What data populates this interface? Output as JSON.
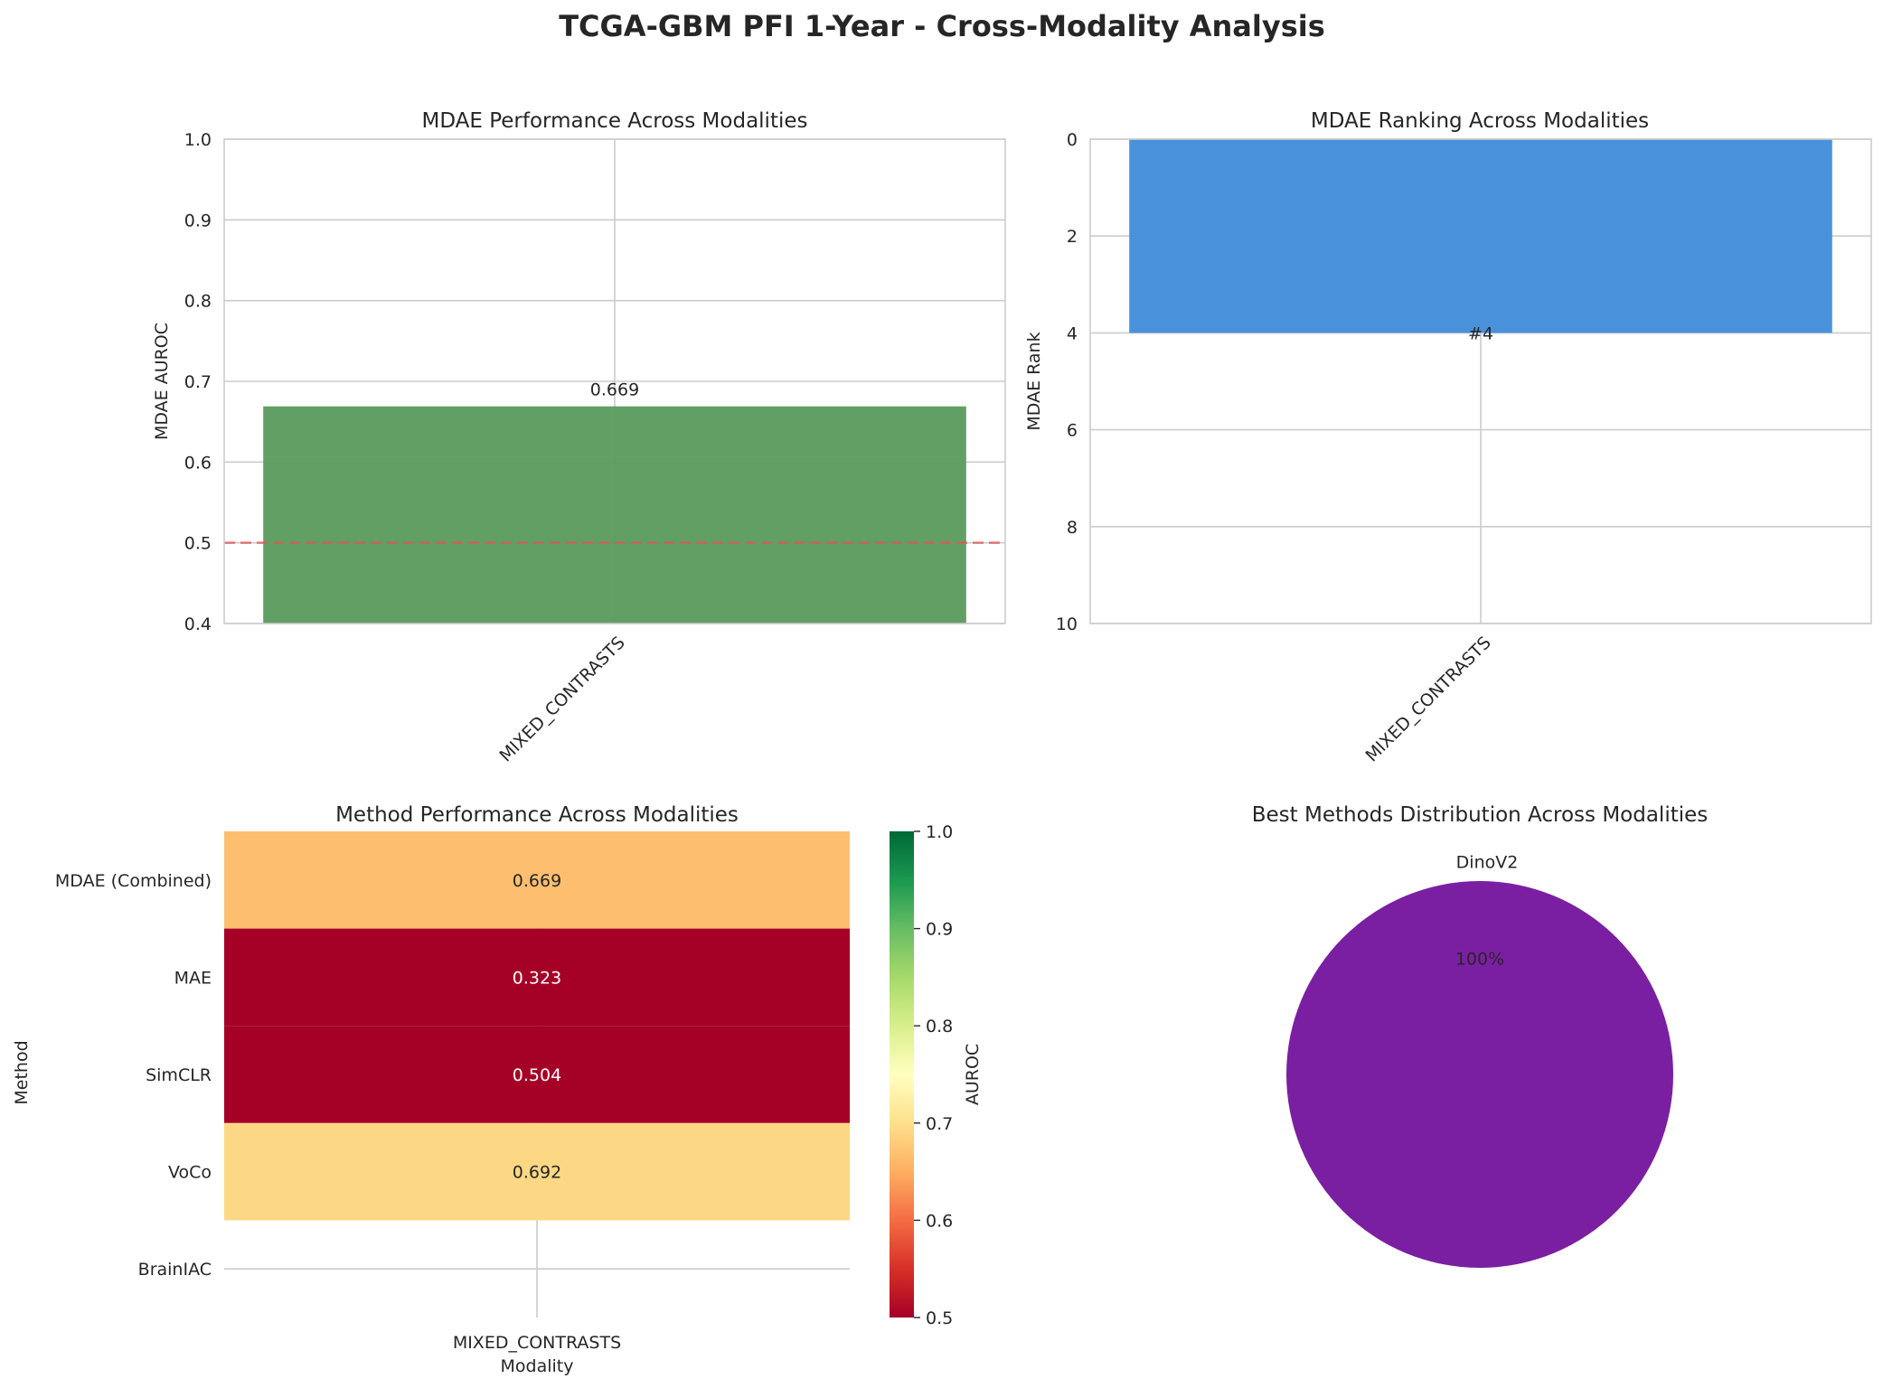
{
  "figure": {
    "title": "TCGA-GBM PFI 1-Year - Cross-Modality Analysis"
  },
  "chart_data": [
    {
      "type": "bar",
      "title": "MDAE Performance Across Modalities",
      "xlabel": "",
      "ylabel": "MDAE AUROC",
      "categories": [
        "MIXED_CONTRASTS"
      ],
      "values": [
        0.669
      ],
      "value_labels": [
        "0.669"
      ],
      "ylim": [
        0.4,
        1.0
      ],
      "yticks": [
        0.4,
        0.5,
        0.6,
        0.7,
        0.8,
        0.9,
        1.0
      ],
      "ytick_labels": [
        "0.4",
        "0.5",
        "0.6",
        "0.7",
        "0.8",
        "0.9",
        "1.0"
      ],
      "reference_line": 0.5,
      "grid": true,
      "colors": {
        "bar": "#5a9a5d",
        "reference_line": "#e05555"
      }
    },
    {
      "type": "bar",
      "title": "MDAE Ranking Across Modalities",
      "xlabel": "",
      "ylabel": "MDAE Rank",
      "categories": [
        "MIXED_CONTRASTS"
      ],
      "values": [
        4
      ],
      "value_labels": [
        "#4"
      ],
      "ylim": [
        0,
        10
      ],
      "y_inverted": true,
      "yticks": [
        0,
        2,
        4,
        6,
        8,
        10
      ],
      "ytick_labels": [
        "0",
        "2",
        "4",
        "6",
        "8",
        "10"
      ],
      "grid": true,
      "colors": {
        "bar": "#4590da"
      }
    },
    {
      "type": "heatmap",
      "title": "Method Performance Across Modalities",
      "xlabel": "Modality",
      "ylabel": "Method",
      "columns": [
        "MIXED_CONTRASTS"
      ],
      "rows": [
        "MDAE (Combined)",
        "MAE",
        "SimCLR",
        "VoCo",
        "BrainIAC"
      ],
      "values": [
        [
          0.669
        ],
        [
          0.323
        ],
        [
          0.504
        ],
        [
          0.692
        ],
        [
          null
        ]
      ],
      "cell_labels": [
        "0.669",
        "0.323",
        "0.504",
        "0.692",
        ""
      ],
      "vmin": 0.5,
      "vmax": 1.0,
      "colormap": "RdYlGn",
      "colorbar_label": "AUROC",
      "colorbar_ticks": [
        0.5,
        0.6,
        0.7,
        0.8,
        0.9,
        1.0
      ],
      "colorbar_tick_labels": [
        "0.5",
        "0.6",
        "0.7",
        "0.8",
        "0.9",
        "1.0"
      ],
      "colors": {
        "MDAE (Combined)": "#fdbf6f",
        "MAE": "#a50026",
        "SimCLR": "#a50026",
        "VoCo": "#fdd884"
      }
    },
    {
      "type": "pie",
      "title": "Best Methods Distribution Across Modalities",
      "labels": [
        "DinoV2"
      ],
      "values": [
        100
      ],
      "pct_labels": [
        "100%"
      ],
      "colors": [
        "#7b1fa2"
      ]
    }
  ]
}
